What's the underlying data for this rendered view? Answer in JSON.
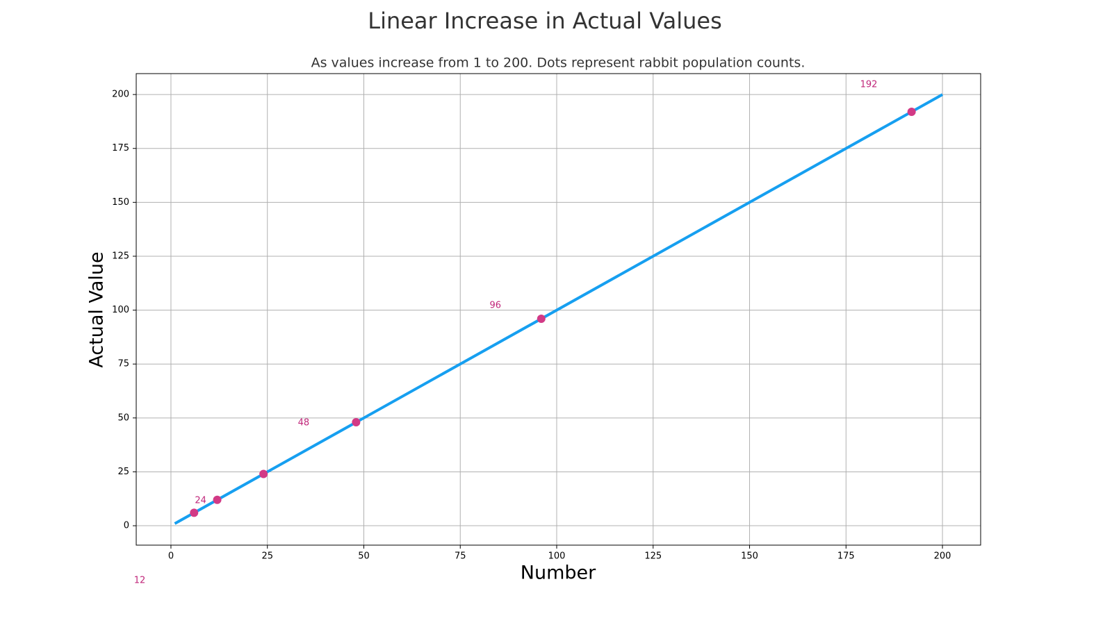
{
  "chart_data": {
    "type": "line",
    "title": "Linear Increase in Actual Values",
    "subtitle": "As values increase from 1 to 200.  Dots represent rabbit population counts.",
    "xlabel": "Number",
    "ylabel": "Actual Value",
    "x": [
      1,
      200
    ],
    "values": [
      1,
      200
    ],
    "color": "#169ff0",
    "points": {
      "x": [
        6,
        12,
        24,
        48,
        96,
        192
      ],
      "values": [
        6,
        12,
        24,
        48,
        96,
        192
      ],
      "color": "#d23a86"
    },
    "annotations": [
      {
        "text": "12",
        "x": -8.1,
        "y": -25.4
      },
      {
        "text": "24",
        "x": 7.7,
        "y": 11.6
      },
      {
        "text": "48",
        "x": 34.4,
        "y": 47.7
      },
      {
        "text": "96",
        "x": 84.1,
        "y": 102.1
      },
      {
        "text": "192",
        "x": 180.9,
        "y": 204.5
      }
    ],
    "annotation_color": "#c0267a",
    "xlim": [
      -9,
      209.9
    ],
    "ylim": [
      -9,
      209.7
    ],
    "xticks": [
      0,
      25,
      50,
      75,
      100,
      125,
      150,
      175,
      200
    ],
    "yticks": [
      0,
      25,
      50,
      75,
      100,
      125,
      150,
      175,
      200
    ],
    "grid": true
  }
}
